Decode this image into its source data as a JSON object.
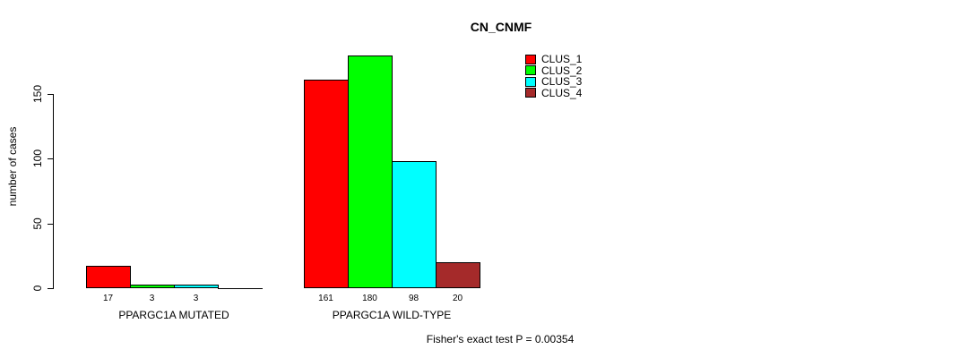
{
  "chart_data": {
    "type": "bar",
    "title": "CN_CNMF",
    "ylabel": "number of cases",
    "xlabel": "",
    "ylim": [
      0,
      180
    ],
    "yticks": [
      0,
      50,
      100,
      150
    ],
    "grid": false,
    "legend_position": "top-right",
    "categories": [
      "PPARGC1A MUTATED",
      "PPARGC1A WILD-TYPE"
    ],
    "series": [
      {
        "name": "CLUS_1",
        "color": "#ff0000",
        "values": [
          17,
          161
        ]
      },
      {
        "name": "CLUS_2",
        "color": "#00ff00",
        "values": [
          3,
          180
        ]
      },
      {
        "name": "CLUS_3",
        "color": "#00ffff",
        "values": [
          3,
          98
        ]
      },
      {
        "name": "CLUS_4",
        "color": "#a52a2a",
        "values": [
          0,
          20
        ]
      }
    ],
    "bar_value_labels": [
      [
        "17",
        "3",
        "3",
        ""
      ],
      [
        "161",
        "180",
        "98",
        "20"
      ]
    ],
    "annotation": "Fisher's exact test P = 0.00354"
  }
}
